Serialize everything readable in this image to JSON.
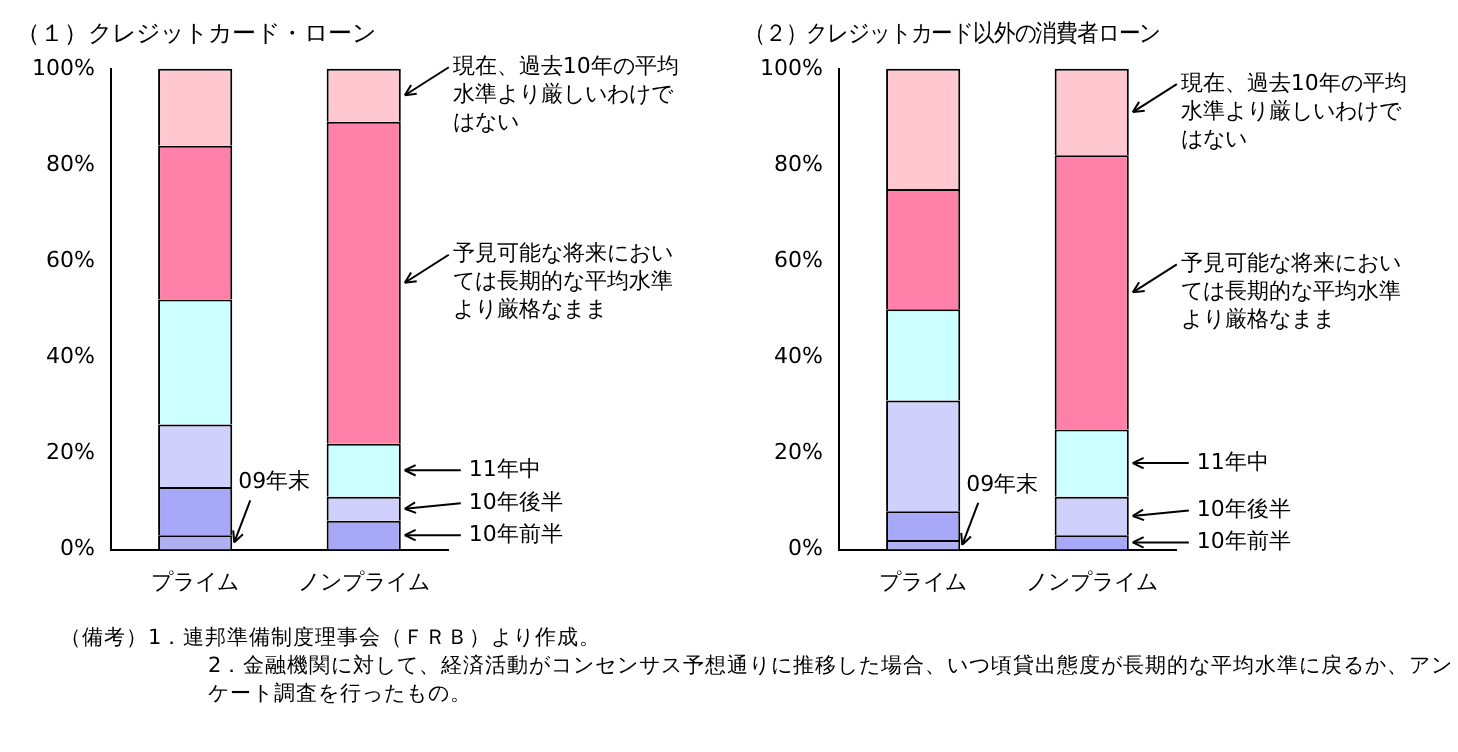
{
  "chart_data": [
    {
      "type": "bar",
      "title": "（１）クレジットカード・ローン",
      "categories": [
        "プライム",
        "ノンプライム"
      ],
      "stacked": true,
      "series": [
        {
          "name": "09年末",
          "color": "#b0b0f0",
          "values": [
            3,
            0
          ]
        },
        {
          "name": "10年前半",
          "color": "#a8a8f8",
          "values": [
            10,
            6
          ]
        },
        {
          "name": "10年後半",
          "color": "#d0d0fc",
          "values": [
            13,
            5
          ]
        },
        {
          "name": "11年中",
          "color": "#ccffff",
          "values": [
            26,
            11
          ]
        },
        {
          "name": "予見可能な将来においては長期的な平均水準より厳格なまま",
          "color": "#ff80a8",
          "values": [
            32,
            67
          ]
        },
        {
          "name": "現在、過去10年の平均水準より厳しいわけではない",
          "color": "#ffc8d0",
          "values": [
            16,
            11
          ]
        }
      ],
      "ylim": [
        0,
        100
      ],
      "yticks": [
        {
          "value": 0,
          "label": "0%"
        },
        {
          "value": 20,
          "label": "20%"
        },
        {
          "value": 40,
          "label": "40%"
        },
        {
          "value": 60,
          "label": "60%"
        },
        {
          "value": 80,
          "label": "80%"
        },
        {
          "value": 100,
          "label": "100%"
        }
      ],
      "grid": false,
      "legend": false,
      "annotations": [
        "（備考）1．連邦準備制度理事会（ＦＲＢ）より作成。",
        "2．金融機関に対して、経済活動がコンセンサス予想通りに推移した場合、いつ頃貸出態度が長期的な平均水準に戻るか、アンケート調査を行ったもの。"
      ]
    },
    {
      "type": "bar",
      "title": "（２）クレジットカード以外の消費者ローン",
      "categories": [
        "プライム",
        "ノンプライム"
      ],
      "stacked": true,
      "series": [
        {
          "name": "09年末",
          "color": "#b0b0f0",
          "values": [
            2,
            0
          ]
        },
        {
          "name": "10年前半",
          "color": "#a8a8f8",
          "values": [
            6,
            3
          ]
        },
        {
          "name": "10年後半",
          "color": "#d0d0fc",
          "values": [
            23,
            8
          ]
        },
        {
          "name": "11年中",
          "color": "#ccffff",
          "values": [
            19,
            14
          ]
        },
        {
          "name": "予見可能な将来においては長期的な平均水準より厳格なまま",
          "color": "#ff80a8",
          "values": [
            25,
            57
          ]
        },
        {
          "name": "現在、過去10年の平均水準より厳しいわけではない",
          "color": "#ffc8d0",
          "values": [
            25,
            18
          ]
        }
      ],
      "ylim": [
        0,
        100
      ],
      "yticks": [
        {
          "value": 0,
          "label": "0%"
        },
        {
          "value": 20,
          "label": "20%"
        },
        {
          "value": 40,
          "label": "40%"
        },
        {
          "value": 60,
          "label": "60%"
        },
        {
          "value": 80,
          "label": "80%"
        },
        {
          "value": 100,
          "label": "100%"
        }
      ],
      "grid": false,
      "legend": false
    }
  ]
}
